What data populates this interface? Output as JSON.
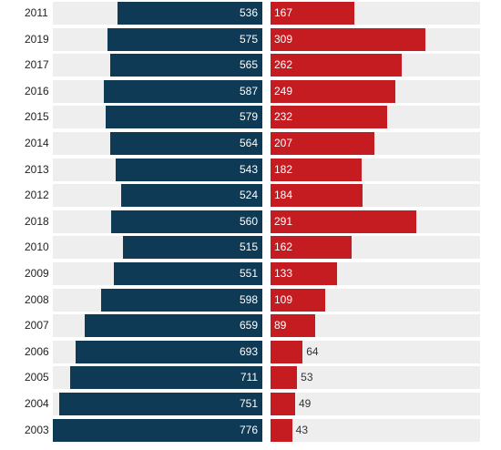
{
  "chart_data": {
    "type": "bar",
    "orientation": "horizontal-diverging",
    "categories": [
      "2011",
      "2019",
      "2017",
      "2016",
      "2015",
      "2014",
      "2013",
      "2012",
      "2018",
      "2010",
      "2009",
      "2008",
      "2007",
      "2006",
      "2005",
      "2004",
      "2003"
    ],
    "series": [
      {
        "values": [
          536,
          575,
          565,
          587,
          579,
          564,
          543,
          524,
          560,
          515,
          551,
          598,
          659,
          693,
          711,
          751,
          776
        ]
      },
      {
        "values": [
          167,
          309,
          262,
          249,
          232,
          207,
          182,
          184,
          291,
          162,
          133,
          109,
          89,
          64,
          53,
          49,
          43
        ]
      }
    ],
    "colors": {
      "left": "#0e3a55",
      "right": "#c51c22",
      "row_bg": "#eeeeee"
    },
    "grid": false,
    "legend": "none"
  }
}
